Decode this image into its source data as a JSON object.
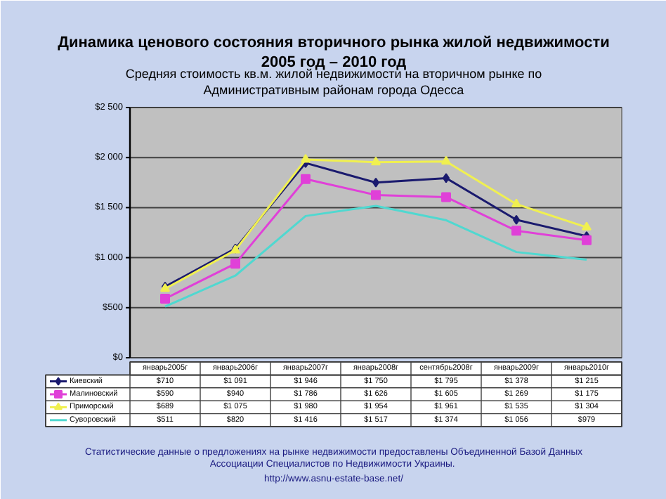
{
  "chart_data": {
    "type": "line",
    "title": "Динамика ценового состояния вторичного рынка жилой недвижимости\n2005 год – 2010 год",
    "subtitle": "Средняя стоимость кв.м. жилой недвижимости на вторичном рынке по\nАдминистративным районам города Одесса",
    "categories": [
      "январь2005г",
      "январь2006г",
      "январь2007г",
      "январь2008г",
      "сентябрь2008г",
      "январь2009г",
      "январь2010г"
    ],
    "series": [
      {
        "name": "Киевский",
        "color": "#1a1a6e",
        "marker": "diamond",
        "values": [
          710,
          1091,
          1946,
          1750,
          1795,
          1378,
          1215
        ],
        "value_labels": [
          "$710",
          "$1 091",
          "$1 946",
          "$1 750",
          "$1 795",
          "$1 378",
          "$1 215"
        ]
      },
      {
        "name": "Малиновский",
        "color": "#e040d8",
        "marker": "square",
        "values": [
          590,
          940,
          1786,
          1626,
          1605,
          1269,
          1175
        ],
        "value_labels": [
          "$590",
          "$940",
          "$1 786",
          "$1 626",
          "$1 605",
          "$1 269",
          "$1 175"
        ]
      },
      {
        "name": "Приморский",
        "color": "#f0f050",
        "marker": "triangle",
        "values": [
          689,
          1075,
          1980,
          1954,
          1961,
          1535,
          1304
        ],
        "value_labels": [
          "$689",
          "$1 075",
          "$1 980",
          "$1 954",
          "$1 961",
          "$1 535",
          "$1 304"
        ]
      },
      {
        "name": "Суворовский",
        "color": "#50d8d0",
        "marker": "none",
        "values": [
          511,
          820,
          1416,
          1517,
          1374,
          1056,
          979
        ],
        "value_labels": [
          "$511",
          "$820",
          "$1 416",
          "$1 517",
          "$1 374",
          "$1 056",
          "$979"
        ]
      }
    ],
    "ylim": [
      0,
      2500
    ],
    "yticks": [
      {
        "value": 0,
        "label": "$0"
      },
      {
        "value": 500,
        "label": "$500"
      },
      {
        "value": 1000,
        "label": "$1 000"
      },
      {
        "value": 1500,
        "label": "$1 500"
      },
      {
        "value": 2000,
        "label": "$2 000"
      },
      {
        "value": 2500,
        "label": "$2 500"
      }
    ],
    "grid": "y",
    "legend": "bottom left",
    "annotations": [
      "Статистические данные о предложениях на рынке недвижимости предоставлены Объединенной Базой Данных\nАссоциации  Специалистов по Недвижимости Украины.",
      "http://www.asnu-estate-base.net/"
    ]
  }
}
